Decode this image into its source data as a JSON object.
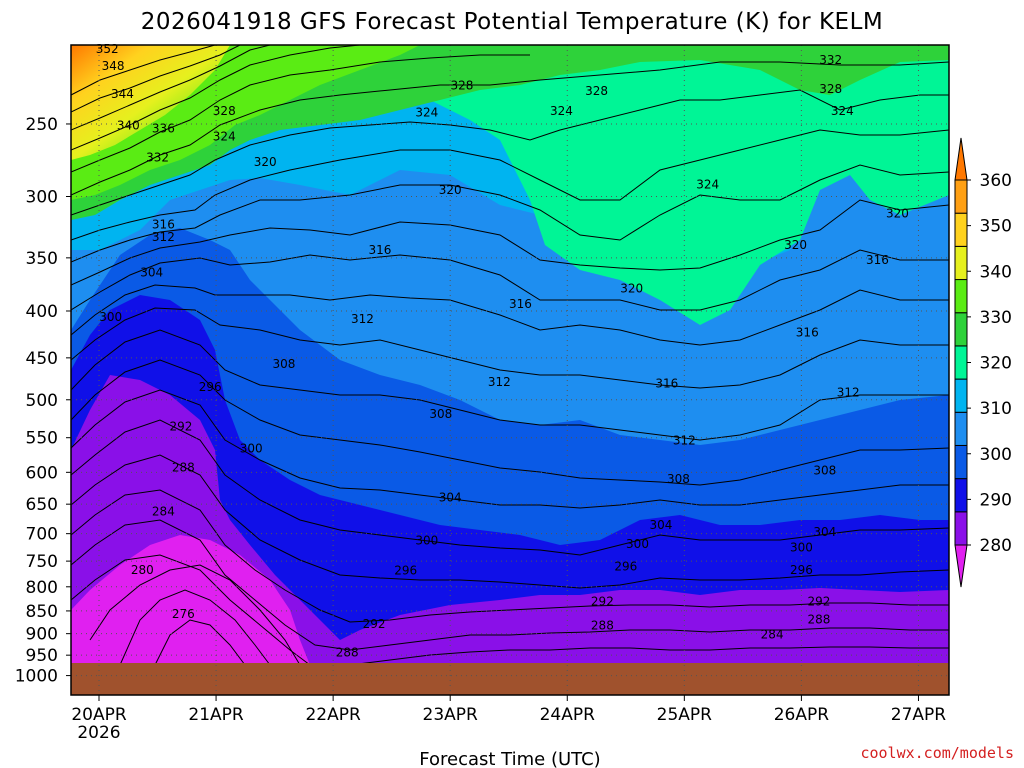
{
  "chart_data": {
    "type": "heatmap",
    "title": "2026041918 GFS Forecast Potential Temperature (K) for KELM",
    "xlabel": "Forecast Time (UTC)",
    "ylabel": "",
    "x_ticks": [
      "20APR",
      "21APR",
      "22APR",
      "23APR",
      "24APR",
      "25APR",
      "26APR",
      "27APR"
    ],
    "x_tick_sublabel": "2026",
    "y_ticks": [
      "250",
      "300",
      "350",
      "400",
      "450",
      "500",
      "550",
      "600",
      "650",
      "700",
      "750",
      "800",
      "850",
      "900",
      "950",
      "1000"
    ],
    "y_scale": "log",
    "y_inverted": true,
    "grid": true,
    "colorbar": {
      "levels": [
        "280",
        "290",
        "300",
        "310",
        "320",
        "330",
        "340",
        "350",
        "360"
      ],
      "colors": [
        "#e020f0",
        "#8a10e8",
        "#1010e8",
        "#0a5ae6",
        "#1e8ef0",
        "#00b4f0",
        "#00f596",
        "#2ed23a",
        "#5aec14",
        "#e6f01e",
        "#ffd21e",
        "#ffa014",
        "#ff7800"
      ],
      "extend": "both"
    },
    "contour_labels": [
      {
        "text": "352",
        "x": 20.07,
        "p": 207
      },
      {
        "text": "348",
        "x": 20.12,
        "p": 216
      },
      {
        "text": "344",
        "x": 20.2,
        "p": 232
      },
      {
        "text": "340",
        "x": 20.25,
        "p": 251
      },
      {
        "text": "336",
        "x": 20.55,
        "p": 253
      },
      {
        "text": "332",
        "x": 20.5,
        "p": 272
      },
      {
        "text": "328",
        "x": 21.07,
        "p": 242
      },
      {
        "text": "324",
        "x": 21.07,
        "p": 258
      },
      {
        "text": "320",
        "x": 21.42,
        "p": 275
      },
      {
        "text": "316",
        "x": 20.55,
        "p": 322
      },
      {
        "text": "312",
        "x": 20.55,
        "p": 332
      },
      {
        "text": "304",
        "x": 20.45,
        "p": 363
      },
      {
        "text": "300",
        "x": 20.1,
        "p": 406
      },
      {
        "text": "296",
        "x": 20.95,
        "p": 484
      },
      {
        "text": "292",
        "x": 20.7,
        "p": 535
      },
      {
        "text": "288",
        "x": 20.72,
        "p": 593
      },
      {
        "text": "284",
        "x": 20.55,
        "p": 662
      },
      {
        "text": "280",
        "x": 20.37,
        "p": 767
      },
      {
        "text": "276",
        "x": 20.72,
        "p": 857
      },
      {
        "text": "324",
        "x": 22.8,
        "p": 243
      },
      {
        "text": "328",
        "x": 23.1,
        "p": 227
      },
      {
        "text": "324",
        "x": 23.95,
        "p": 242
      },
      {
        "text": "328",
        "x": 24.25,
        "p": 230
      },
      {
        "text": "320",
        "x": 23.0,
        "p": 295
      },
      {
        "text": "316",
        "x": 22.4,
        "p": 343
      },
      {
        "text": "312",
        "x": 22.25,
        "p": 408
      },
      {
        "text": "308",
        "x": 21.58,
        "p": 457
      },
      {
        "text": "300",
        "x": 21.3,
        "p": 565
      },
      {
        "text": "316",
        "x": 23.6,
        "p": 393
      },
      {
        "text": "312",
        "x": 23.42,
        "p": 478
      },
      {
        "text": "308",
        "x": 22.92,
        "p": 518
      },
      {
        "text": "304",
        "x": 23.0,
        "p": 639
      },
      {
        "text": "300",
        "x": 22.8,
        "p": 712
      },
      {
        "text": "296",
        "x": 22.62,
        "p": 768
      },
      {
        "text": "292",
        "x": 22.35,
        "p": 878
      },
      {
        "text": "288",
        "x": 22.12,
        "p": 944
      },
      {
        "text": "324",
        "x": 25.2,
        "p": 291
      },
      {
        "text": "320",
        "x": 24.55,
        "p": 378
      },
      {
        "text": "316",
        "x": 24.85,
        "p": 480
      },
      {
        "text": "312",
        "x": 25.0,
        "p": 554
      },
      {
        "text": "308",
        "x": 24.95,
        "p": 610
      },
      {
        "text": "304",
        "x": 24.8,
        "p": 685
      },
      {
        "text": "300",
        "x": 24.6,
        "p": 718
      },
      {
        "text": "296",
        "x": 24.5,
        "p": 760
      },
      {
        "text": "292",
        "x": 24.3,
        "p": 830
      },
      {
        "text": "288",
        "x": 24.3,
        "p": 882
      },
      {
        "text": "284",
        "x": 25.75,
        "p": 902
      },
      {
        "text": "332",
        "x": 26.25,
        "p": 213
      },
      {
        "text": "328",
        "x": 26.25,
        "p": 229
      },
      {
        "text": "324",
        "x": 26.35,
        "p": 242
      },
      {
        "text": "320",
        "x": 26.82,
        "p": 313
      },
      {
        "text": "320",
        "x": 25.95,
        "p": 339
      },
      {
        "text": "316",
        "x": 26.65,
        "p": 352
      },
      {
        "text": "316",
        "x": 26.05,
        "p": 422
      },
      {
        "text": "312",
        "x": 26.4,
        "p": 491
      },
      {
        "text": "308",
        "x": 26.2,
        "p": 597
      },
      {
        "text": "304",
        "x": 26.2,
        "p": 697
      },
      {
        "text": "300",
        "x": 26.0,
        "p": 725
      },
      {
        "text": "296",
        "x": 26.0,
        "p": 767
      },
      {
        "text": "292",
        "x": 26.15,
        "p": 830
      },
      {
        "text": "288",
        "x": 26.15,
        "p": 868
      }
    ]
  },
  "credit": "coolwx.com/models"
}
